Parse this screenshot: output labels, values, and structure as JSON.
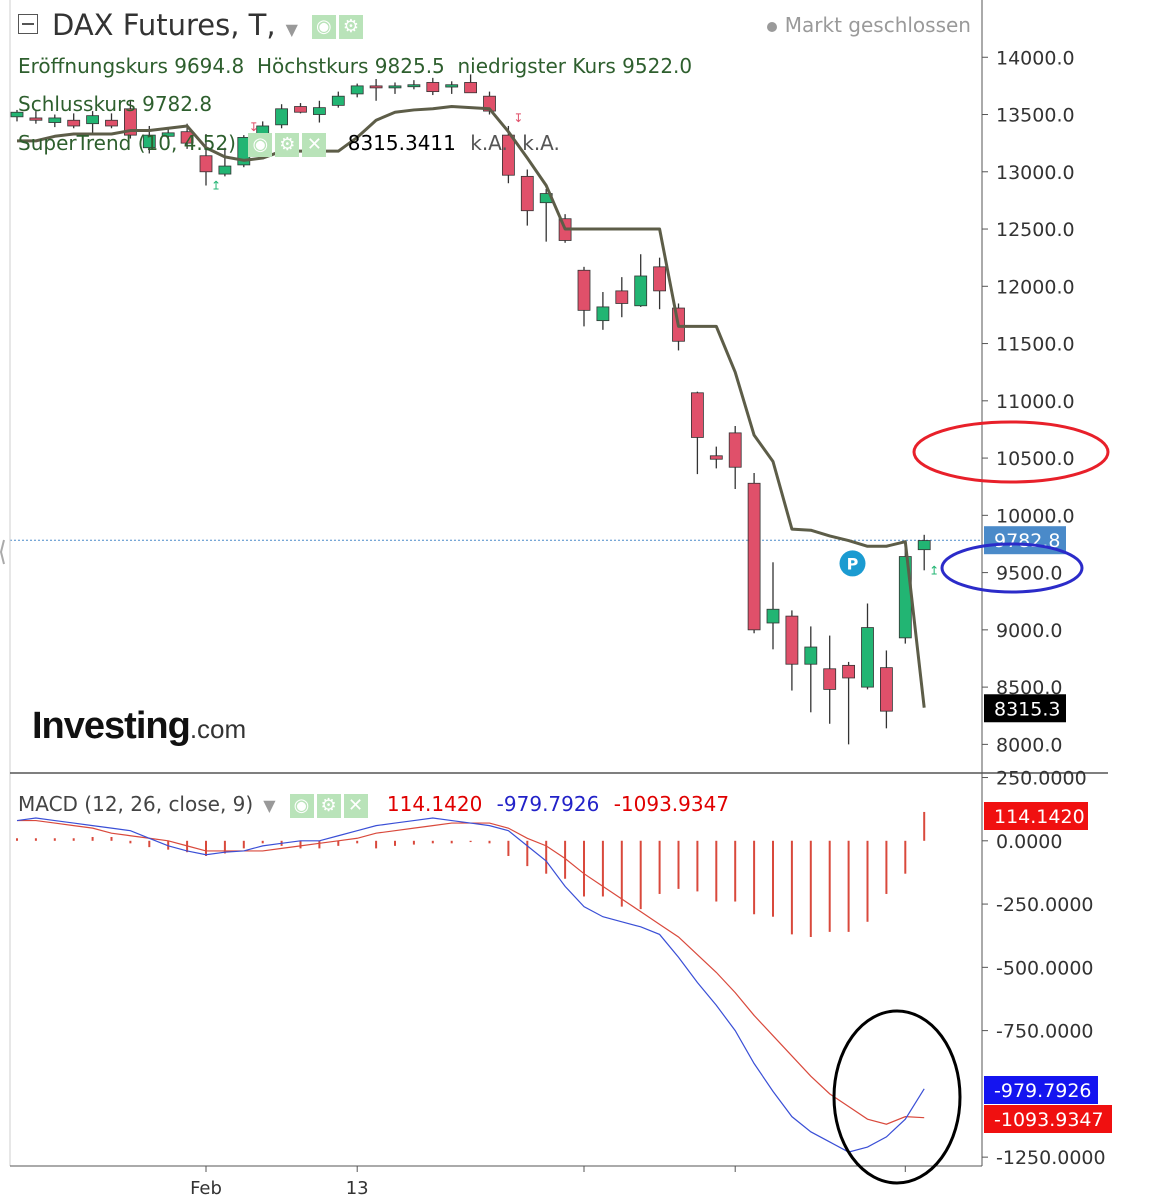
{
  "header": {
    "title": "DAX Futures, T,",
    "status": "Markt geschlossen",
    "ohlc": {
      "open_label": "Eröffnungskurs",
      "open_value": "9694.8",
      "high_label": "Höchstkurs",
      "high_value": "9825.5",
      "low_label": "niedrigster Kurs",
      "low_value": "9522.0"
    },
    "close_label": "Schlusskurs",
    "close_value": "9782.8",
    "supertrend": {
      "label": "SuperTrend (10, 4.52)",
      "value": "8315.3411",
      "na1": "k.A.",
      "na2": "k.A."
    },
    "macd": {
      "label": "MACD (12, 26, close, 9)",
      "hist": "114.1420",
      "macd": "-979.7926",
      "signal": "-1093.9347"
    }
  },
  "logo": {
    "main": "Investing",
    "suffix": ".com"
  },
  "icons": [
    "collapse-icon",
    "eye-icon",
    "gear-icon",
    "close-icon",
    "dropdown-caret-icon",
    "pivot-marker-icon"
  ],
  "colors": {
    "up": "#22b573",
    "down": "#e0506a",
    "supertrend": "#5d5d48",
    "macd_line": "#3a4fd6",
    "signal_line": "#d9493c",
    "hist": "#d9493c",
    "price_tag": "#4a8ac9",
    "st_tag": "#000000",
    "red_ellipse": "#e8202a",
    "blue_ellipse": "#2b2bc9",
    "black_ellipse": "#000000"
  },
  "annotations": {
    "pivot_marker": "P"
  },
  "chart_data": [
    {
      "type": "candlestick",
      "title": "DAX Futures, T,",
      "x_labels": [
        {
          "index": 10,
          "label": "Feb"
        },
        {
          "index": 18,
          "label": "13"
        }
      ],
      "y_ticks": [
        "14000.0",
        "13500.0",
        "13000.0",
        "12500.0",
        "12000.0",
        "11500.0",
        "11000.0",
        "10500.0",
        "10000.0",
        "9500.0",
        "9000.0",
        "8500.0",
        "8000.0"
      ],
      "y_tick_values": [
        14000,
        13500,
        13000,
        12500,
        12000,
        11500,
        11000,
        10500,
        10000,
        9500,
        9000,
        8500,
        8000
      ],
      "ylim": [
        7750,
        14500
      ],
      "last_price": 9782.8,
      "last_price_label": "9782.8",
      "supertrend_last": 8315.3,
      "supertrend_last_label": "8315.3",
      "candles": [
        {
          "o": 13480,
          "h": 13540,
          "l": 13440,
          "c": 13520
        },
        {
          "o": 13470,
          "h": 13530,
          "l": 13420,
          "c": 13450
        },
        {
          "o": 13430,
          "h": 13500,
          "l": 13390,
          "c": 13470
        },
        {
          "o": 13450,
          "h": 13510,
          "l": 13380,
          "c": 13400
        },
        {
          "o": 13420,
          "h": 13530,
          "l": 13330,
          "c": 13490
        },
        {
          "o": 13450,
          "h": 13510,
          "l": 13380,
          "c": 13400
        },
        {
          "o": 13550,
          "h": 13620,
          "l": 13290,
          "c": 13320
        },
        {
          "o": 13210,
          "h": 13400,
          "l": 13160,
          "c": 13320
        },
        {
          "o": 13310,
          "h": 13380,
          "l": 13210,
          "c": 13340
        },
        {
          "o": 13350,
          "h": 13420,
          "l": 13200,
          "c": 13250
        },
        {
          "o": 13140,
          "h": 13330,
          "l": 12880,
          "c": 13000
        },
        {
          "o": 12980,
          "h": 13210,
          "l": 12960,
          "c": 13050
        },
        {
          "o": 13060,
          "h": 13320,
          "l": 13040,
          "c": 13300
        },
        {
          "o": 13300,
          "h": 13440,
          "l": 13170,
          "c": 13400
        },
        {
          "o": 13410,
          "h": 13590,
          "l": 13380,
          "c": 13550
        },
        {
          "o": 13570,
          "h": 13600,
          "l": 13510,
          "c": 13520
        },
        {
          "o": 13500,
          "h": 13620,
          "l": 13430,
          "c": 13560
        },
        {
          "o": 13580,
          "h": 13700,
          "l": 13560,
          "c": 13660
        },
        {
          "o": 13680,
          "h": 13770,
          "l": 13650,
          "c": 13750
        },
        {
          "o": 13750,
          "h": 13810,
          "l": 13620,
          "c": 13740
        },
        {
          "o": 13740,
          "h": 13780,
          "l": 13680,
          "c": 13750
        },
        {
          "o": 13760,
          "h": 13800,
          "l": 13720,
          "c": 13760
        },
        {
          "o": 13780,
          "h": 13820,
          "l": 13670,
          "c": 13700
        },
        {
          "o": 13740,
          "h": 13790,
          "l": 13680,
          "c": 13760
        },
        {
          "o": 13780,
          "h": 13850,
          "l": 13700,
          "c": 13690
        },
        {
          "o": 13660,
          "h": 13700,
          "l": 13500,
          "c": 13530
        },
        {
          "o": 13320,
          "h": 13400,
          "l": 12900,
          "c": 12970
        },
        {
          "o": 12960,
          "h": 13020,
          "l": 12530,
          "c": 12660
        },
        {
          "o": 12730,
          "h": 12850,
          "l": 12390,
          "c": 12810
        },
        {
          "o": 12590,
          "h": 12630,
          "l": 12380,
          "c": 12400
        },
        {
          "o": 12140,
          "h": 12170,
          "l": 11650,
          "c": 11790
        },
        {
          "o": 11700,
          "h": 11950,
          "l": 11620,
          "c": 11820
        },
        {
          "o": 11960,
          "h": 12080,
          "l": 11730,
          "c": 11850
        },
        {
          "o": 11830,
          "h": 12280,
          "l": 11820,
          "c": 12090
        },
        {
          "o": 12170,
          "h": 12250,
          "l": 11800,
          "c": 11960
        },
        {
          "o": 11810,
          "h": 11850,
          "l": 11440,
          "c": 11520
        },
        {
          "o": 11070,
          "h": 11080,
          "l": 10360,
          "c": 10680
        },
        {
          "o": 10520,
          "h": 10600,
          "l": 10410,
          "c": 10490
        },
        {
          "o": 10720,
          "h": 10780,
          "l": 10230,
          "c": 10420
        },
        {
          "o": 10280,
          "h": 10370,
          "l": 8970,
          "c": 9000
        },
        {
          "o": 9060,
          "h": 9590,
          "l": 8830,
          "c": 9180
        },
        {
          "o": 9120,
          "h": 9170,
          "l": 8470,
          "c": 8700
        },
        {
          "o": 8700,
          "h": 9030,
          "l": 8280,
          "c": 8850
        },
        {
          "o": 8660,
          "h": 8950,
          "l": 8180,
          "c": 8480
        },
        {
          "o": 8690,
          "h": 8720,
          "l": 8000,
          "c": 8580
        },
        {
          "o": 8500,
          "h": 9230,
          "l": 8480,
          "c": 9020
        },
        {
          "o": 8670,
          "h": 8820,
          "l": 8140,
          "c": 8290
        },
        {
          "o": 8930,
          "h": 9750,
          "l": 8880,
          "c": 9640
        },
        {
          "o": 9700,
          "h": 9830,
          "l": 9520,
          "c": 9780
        }
      ],
      "supertrend": [
        13270,
        13270,
        13310,
        13330,
        13330,
        13330,
        13360,
        13360,
        13380,
        13400,
        13210,
        13130,
        13100,
        13120,
        13180,
        13180,
        13180,
        13180,
        13300,
        13450,
        13520,
        13540,
        13550,
        13570,
        13560,
        13550,
        13350,
        13120,
        12880,
        12500,
        12500,
        12500,
        12500,
        12500,
        12500,
        11650,
        11650,
        11650,
        11250,
        10700,
        10470,
        9880,
        9870,
        9820,
        9780,
        9730,
        9730,
        9770,
        8320
      ],
      "markers": {
        "pivot_index": 45,
        "pivot_value": 9580,
        "up_arrows": [
          10,
          48
        ],
        "down_arrows": [
          12,
          26
        ]
      }
    },
    {
      "type": "macd",
      "title": "MACD (12, 26, close, 9)",
      "y_ticks": [
        "250.0000",
        "0.0000",
        "-250.0000",
        "-500.0000",
        "-750.0000",
        "-1250.0000"
      ],
      "y_tick_values": [
        250,
        0,
        -250,
        -500,
        -750,
        -1250
      ],
      "ylim": [
        -1285,
        260
      ],
      "hist_last_label": "114.1420",
      "macd_last_label": "-979.7926",
      "signal_last_label": "-1093.9347",
      "histogram": [
        10,
        10,
        10,
        10,
        15,
        15,
        -10,
        -25,
        -35,
        -45,
        -60,
        -50,
        -30,
        -10,
        -20,
        -30,
        -30,
        -20,
        -10,
        -30,
        -20,
        -15,
        -10,
        -10,
        -5,
        -10,
        -60,
        -100,
        -130,
        -150,
        -220,
        -220,
        -260,
        -270,
        -210,
        -190,
        -200,
        -240,
        -240,
        -290,
        -300,
        -370,
        -380,
        -360,
        -360,
        -320,
        -210,
        -130,
        114
      ],
      "macd": [
        80,
        90,
        80,
        70,
        60,
        50,
        40,
        10,
        -20,
        -40,
        -55,
        -45,
        -40,
        -20,
        -10,
        0,
        0,
        20,
        40,
        60,
        70,
        80,
        90,
        80,
        70,
        60,
        40,
        -20,
        -80,
        -180,
        -260,
        -300,
        -320,
        -340,
        -370,
        -460,
        -560,
        -650,
        -750,
        -880,
        -990,
        -1090,
        -1150,
        -1190,
        -1230,
        -1210,
        -1170,
        -1100,
        -980
      ],
      "signal": [
        80,
        80,
        70,
        60,
        50,
        30,
        20,
        10,
        0,
        -20,
        -40,
        -40,
        -40,
        -40,
        -30,
        -20,
        -10,
        0,
        10,
        30,
        40,
        50,
        60,
        70,
        70,
        70,
        50,
        10,
        -20,
        -70,
        -130,
        -180,
        -230,
        -280,
        -330,
        -380,
        -450,
        -520,
        -600,
        -690,
        -770,
        -850,
        -930,
        -1000,
        -1050,
        -1100,
        -1120,
        -1090,
        -1094
      ]
    }
  ]
}
